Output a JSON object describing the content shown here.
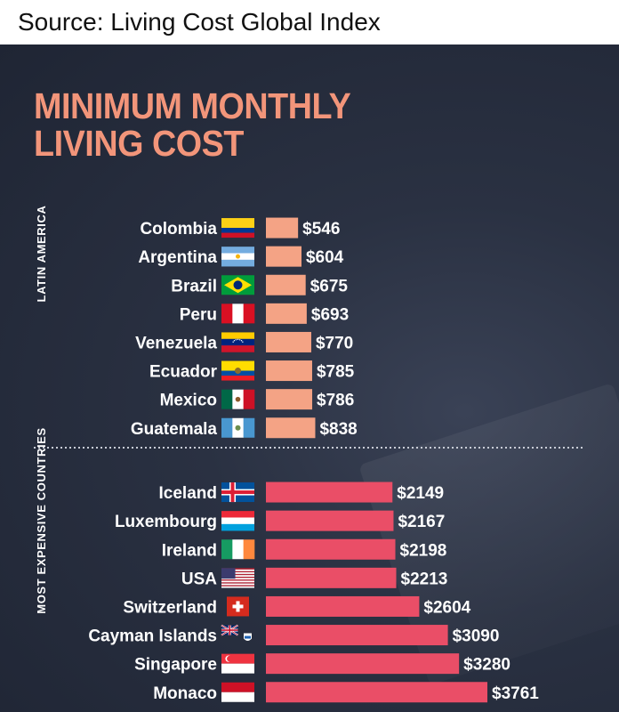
{
  "source_text": "Source: Living Cost Global Index",
  "colors": {
    "panel_bg": "#232a3a",
    "title": "#f2957a",
    "latin_bar": "#f4a385",
    "expensive_bar": "#ea4e67",
    "text": "#ffffff"
  },
  "chart_data": {
    "type": "bar",
    "orientation": "horizontal",
    "title": "MINIMUM MONTHLY\nLIVING COST",
    "value_prefix": "$",
    "groups": [
      {
        "name": "LATIN AMERICA",
        "color": "#f4a385",
        "categories": [
          "Colombia",
          "Argentina",
          "Brazil",
          "Peru",
          "Venezuela",
          "Ecuador",
          "Mexico",
          "Guatemala"
        ],
        "values": [
          546,
          604,
          675,
          693,
          770,
          785,
          786,
          838
        ],
        "flags": [
          "colombia",
          "argentina",
          "brazil",
          "peru",
          "venezuela",
          "ecuador",
          "mexico",
          "guatemala"
        ]
      },
      {
        "name": "MOST EXPENSIVE COUNTRIES",
        "color": "#ea4e67",
        "categories": [
          "Iceland",
          "Luxembourg",
          "Ireland",
          "USA",
          "Switzerland",
          "Cayman Islands",
          "Singapore",
          "Monaco"
        ],
        "values": [
          2149,
          2167,
          2198,
          2213,
          2604,
          3090,
          3280,
          3761
        ],
        "flags": [
          "iceland",
          "luxembourg",
          "ireland",
          "usa",
          "switzerland",
          "cayman-islands",
          "singapore",
          "monaco"
        ]
      }
    ]
  }
}
